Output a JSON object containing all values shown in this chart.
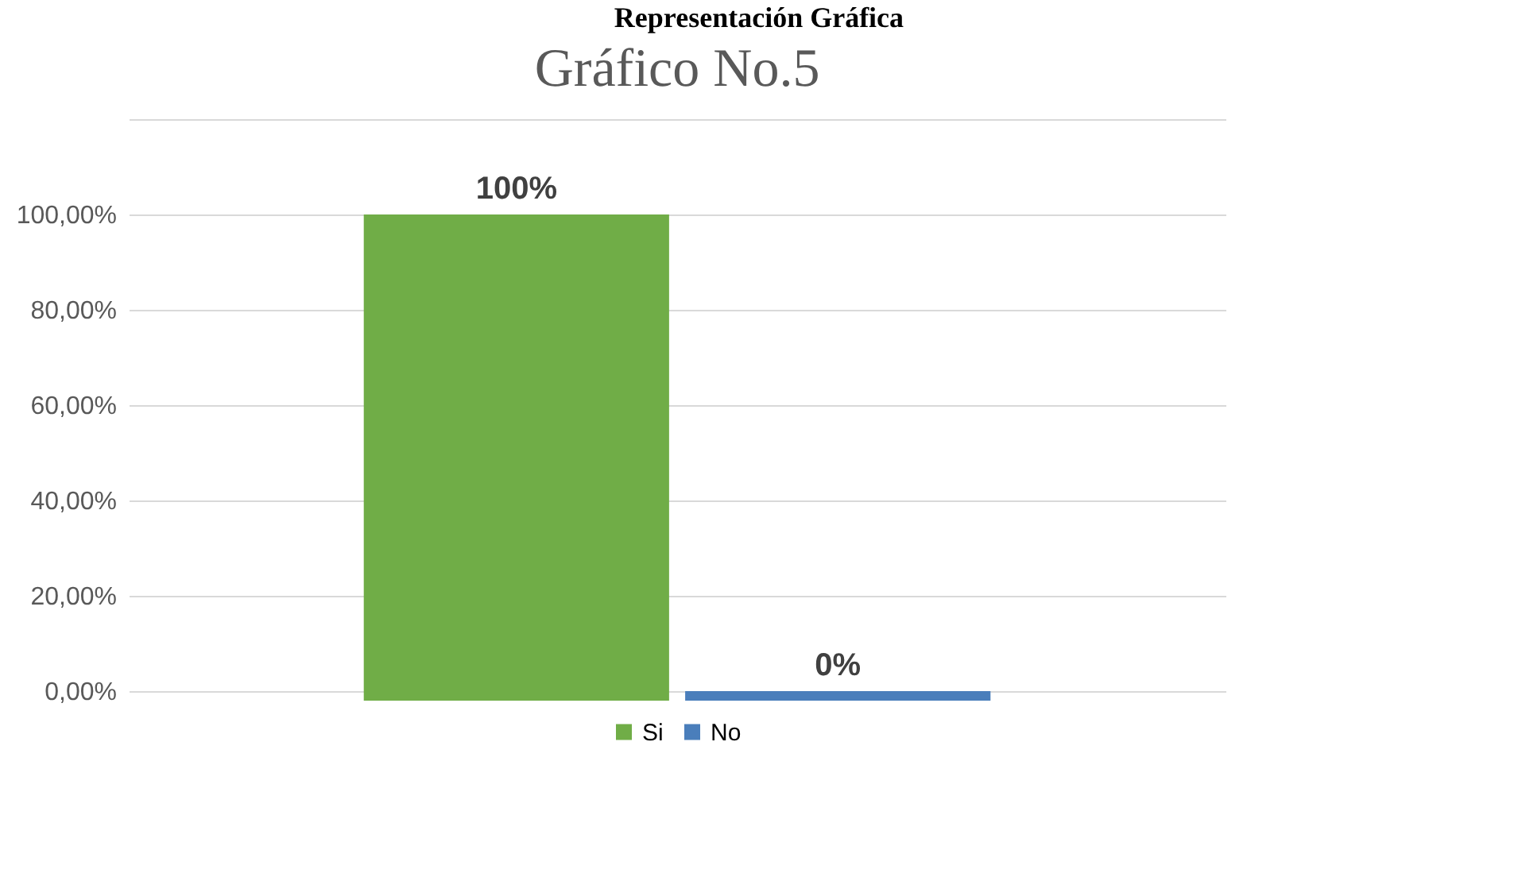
{
  "chart_data": {
    "type": "bar",
    "title": "Gráfico No.5",
    "annotations": [
      "Representación Gráfica"
    ],
    "categories": [
      null
    ],
    "series": [
      {
        "name": "Si",
        "color": "#70ad47",
        "values": [
          100
        ],
        "value_labels": [
          "100%"
        ]
      },
      {
        "name": "No",
        "color": "#4a7ebb",
        "values": [
          0
        ],
        "value_labels": [
          "0%"
        ]
      }
    ],
    "ylim": [
      0,
      120
    ],
    "yticks": [
      {
        "value": 0,
        "label": "0,00%"
      },
      {
        "value": 20,
        "label": "20,00%"
      },
      {
        "value": 40,
        "label": "40,00%"
      },
      {
        "value": 60,
        "label": "60,00%"
      },
      {
        "value": 80,
        "label": "80,00%"
      },
      {
        "value": 100,
        "label": "100,00%"
      },
      {
        "value": 120,
        "label": null
      }
    ],
    "grid": "y",
    "legend": "bottom",
    "tick_labels": "y"
  }
}
